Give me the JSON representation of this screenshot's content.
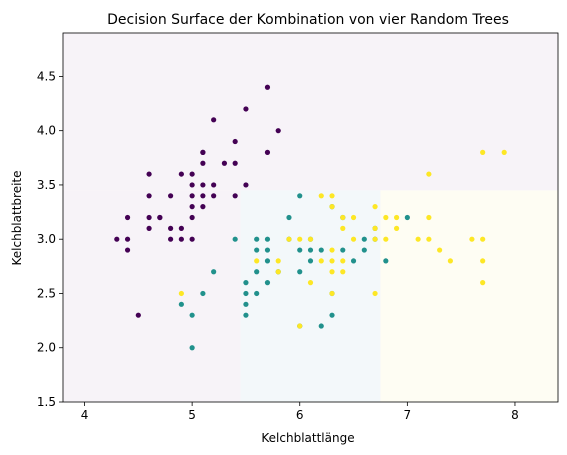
{
  "chart_data": {
    "type": "scatter",
    "title": "Decision Surface der Kombination von vier Random Trees",
    "xlabel": "Kelchblattlänge",
    "ylabel": "Kelchblattbreite",
    "xlim": [
      3.8,
      8.4
    ],
    "ylim": [
      1.5,
      4.9
    ],
    "xticks": [
      4,
      5,
      6,
      7,
      8
    ],
    "yticks": [
      1.5,
      2.0,
      2.5,
      3.0,
      3.5,
      4.0,
      4.5
    ],
    "xtick_labels": [
      "4",
      "5",
      "6",
      "7",
      "8"
    ],
    "ytick_labels": [
      "1.5",
      "2.0",
      "2.5",
      "3.0",
      "3.5",
      "4.0",
      "4.5"
    ],
    "grid": false,
    "decision_regions": [
      {
        "class": 0,
        "x": [
          3.8,
          8.4
        ],
        "y": [
          3.45,
          4.9
        ],
        "color": "#f7f3f8"
      },
      {
        "class": 0,
        "x": [
          3.8,
          5.45
        ],
        "y": [
          1.5,
          3.45
        ],
        "color": "#f7f3f8"
      },
      {
        "class": 1,
        "x": [
          5.45,
          6.75
        ],
        "y": [
          1.5,
          3.45
        ],
        "color": "#f3f8fa"
      },
      {
        "class": 2,
        "x": [
          6.75,
          8.4
        ],
        "y": [
          1.5,
          3.45
        ],
        "color": "#fefdf3"
      }
    ],
    "class_colors": [
      "#440154",
      "#21918c",
      "#fde725"
    ],
    "series": [
      {
        "class": 0,
        "points": [
          [
            4.3,
            3.0
          ],
          [
            4.4,
            2.9
          ],
          [
            4.4,
            3.0
          ],
          [
            4.4,
            3.2
          ],
          [
            4.5,
            2.3
          ],
          [
            4.6,
            3.1
          ],
          [
            4.6,
            3.2
          ],
          [
            4.6,
            3.4
          ],
          [
            4.6,
            3.6
          ],
          [
            4.7,
            3.2
          ],
          [
            4.7,
            3.2
          ],
          [
            4.8,
            3.0
          ],
          [
            4.8,
            3.1
          ],
          [
            4.8,
            3.4
          ],
          [
            4.9,
            3.0
          ],
          [
            4.9,
            3.1
          ],
          [
            4.9,
            3.6
          ],
          [
            5.0,
            3.0
          ],
          [
            5.0,
            3.2
          ],
          [
            5.0,
            3.3
          ],
          [
            5.0,
            3.4
          ],
          [
            5.0,
            3.5
          ],
          [
            5.0,
            3.6
          ],
          [
            5.1,
            3.3
          ],
          [
            5.1,
            3.4
          ],
          [
            5.1,
            3.5
          ],
          [
            5.1,
            3.7
          ],
          [
            5.1,
            3.8
          ],
          [
            5.1,
            3.8
          ],
          [
            5.2,
            3.4
          ],
          [
            5.2,
            3.5
          ],
          [
            5.2,
            4.1
          ],
          [
            5.3,
            3.7
          ],
          [
            5.4,
            3.4
          ],
          [
            5.4,
            3.7
          ],
          [
            5.4,
            3.9
          ],
          [
            5.5,
            3.5
          ],
          [
            5.5,
            4.2
          ],
          [
            5.7,
            3.8
          ],
          [
            5.7,
            4.4
          ],
          [
            5.8,
            4.0
          ]
        ]
      },
      {
        "class": 1,
        "points": [
          [
            4.9,
            2.4
          ],
          [
            5.0,
            2.0
          ],
          [
            5.0,
            2.3
          ],
          [
            5.1,
            2.5
          ],
          [
            5.2,
            2.7
          ],
          [
            5.4,
            3.0
          ],
          [
            5.5,
            2.3
          ],
          [
            5.5,
            2.4
          ],
          [
            5.5,
            2.5
          ],
          [
            5.5,
            2.6
          ],
          [
            5.6,
            2.5
          ],
          [
            5.6,
            2.7
          ],
          [
            5.6,
            2.9
          ],
          [
            5.6,
            3.0
          ],
          [
            5.7,
            2.6
          ],
          [
            5.7,
            2.8
          ],
          [
            5.7,
            2.9
          ],
          [
            5.7,
            3.0
          ],
          [
            5.8,
            2.7
          ],
          [
            5.9,
            3.0
          ],
          [
            5.9,
            3.2
          ],
          [
            6.0,
            2.2
          ],
          [
            6.0,
            2.7
          ],
          [
            6.0,
            2.9
          ],
          [
            6.0,
            3.4
          ],
          [
            6.1,
            2.8
          ],
          [
            6.1,
            2.9
          ],
          [
            6.1,
            3.0
          ],
          [
            6.2,
            2.2
          ],
          [
            6.2,
            2.9
          ],
          [
            6.3,
            2.3
          ],
          [
            6.3,
            2.5
          ],
          [
            6.3,
            3.3
          ],
          [
            6.4,
            2.9
          ],
          [
            6.4,
            3.2
          ],
          [
            6.5,
            2.8
          ],
          [
            6.6,
            2.9
          ],
          [
            6.6,
            3.0
          ],
          [
            6.7,
            3.0
          ],
          [
            6.7,
            3.1
          ],
          [
            6.8,
            2.8
          ],
          [
            7.0,
            3.2
          ]
        ]
      },
      {
        "class": 2,
        "points": [
          [
            4.9,
            2.5
          ],
          [
            5.6,
            2.8
          ],
          [
            5.8,
            2.7
          ],
          [
            5.8,
            2.8
          ],
          [
            5.9,
            3.0
          ],
          [
            6.0,
            2.2
          ],
          [
            6.0,
            3.0
          ],
          [
            6.1,
            2.6
          ],
          [
            6.1,
            3.0
          ],
          [
            6.2,
            2.8
          ],
          [
            6.2,
            3.4
          ],
          [
            6.3,
            2.5
          ],
          [
            6.3,
            2.7
          ],
          [
            6.3,
            2.8
          ],
          [
            6.3,
            2.9
          ],
          [
            6.3,
            3.3
          ],
          [
            6.3,
            3.4
          ],
          [
            6.4,
            2.7
          ],
          [
            6.4,
            2.8
          ],
          [
            6.4,
            3.1
          ],
          [
            6.4,
            3.2
          ],
          [
            6.5,
            3.0
          ],
          [
            6.5,
            3.2
          ],
          [
            6.7,
            2.5
          ],
          [
            6.7,
            3.0
          ],
          [
            6.7,
            3.1
          ],
          [
            6.7,
            3.3
          ],
          [
            6.8,
            3.0
          ],
          [
            6.8,
            3.2
          ],
          [
            6.9,
            3.1
          ],
          [
            6.9,
            3.2
          ],
          [
            7.1,
            3.0
          ],
          [
            7.2,
            3.0
          ],
          [
            7.2,
            3.2
          ],
          [
            7.2,
            3.6
          ],
          [
            7.3,
            2.9
          ],
          [
            7.4,
            2.8
          ],
          [
            7.6,
            3.0
          ],
          [
            7.7,
            2.6
          ],
          [
            7.7,
            2.8
          ],
          [
            7.7,
            3.0
          ],
          [
            7.7,
            3.8
          ],
          [
            7.9,
            3.8
          ]
        ]
      }
    ]
  }
}
